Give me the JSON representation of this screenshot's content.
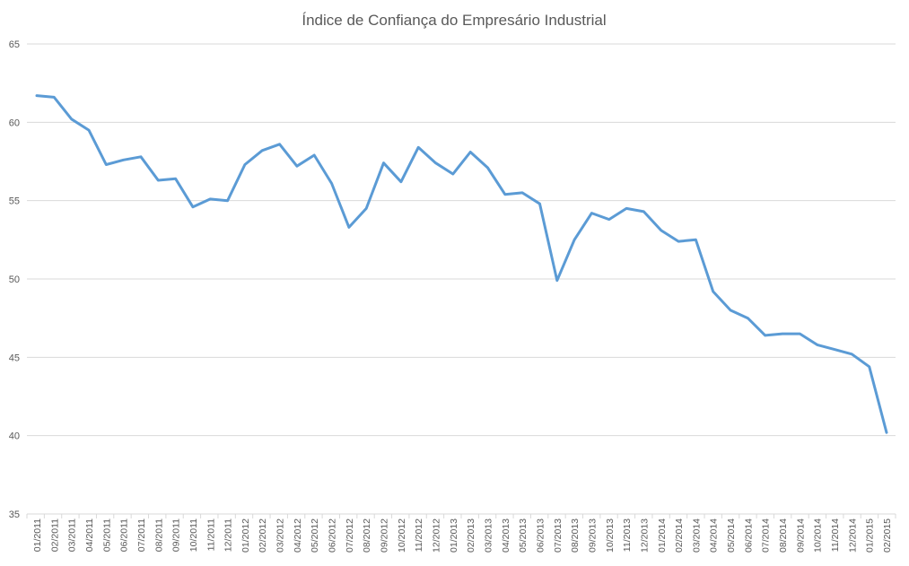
{
  "chart_data": {
    "type": "line",
    "title": "Índice de Confiança do Empresário Industrial",
    "xlabel": "",
    "ylabel": "",
    "ylim": [
      35,
      65
    ],
    "yticks": [
      35,
      40,
      45,
      50,
      55,
      60,
      65
    ],
    "grid": true,
    "legend": "none",
    "line_color": "#5b9bd5",
    "categories": [
      "01/2011",
      "02/2011",
      "03/2011",
      "04/2011",
      "05/2011",
      "06/2011",
      "07/2011",
      "08/2011",
      "09/2011",
      "10/2011",
      "11/2011",
      "12/2011",
      "01/2012",
      "02/2012",
      "03/2012",
      "04/2012",
      "05/2012",
      "06/2012",
      "07/2012",
      "08/2012",
      "09/2012",
      "10/2012",
      "11/2012",
      "12/2012",
      "01/2013",
      "02/2013",
      "03/2013",
      "04/2013",
      "05/2013",
      "06/2013",
      "07/2013",
      "08/2013",
      "09/2013",
      "10/2013",
      "11/2013",
      "12/2013",
      "01/2014",
      "02/2014",
      "03/2014",
      "04/2014",
      "05/2014",
      "06/2014",
      "07/2014",
      "08/2014",
      "09/2014",
      "10/2014",
      "11/2014",
      "12/2014",
      "01/2015",
      "02/2015"
    ],
    "values": [
      61.7,
      61.6,
      60.2,
      59.5,
      57.3,
      57.6,
      57.8,
      56.3,
      56.4,
      54.6,
      55.1,
      55.0,
      57.3,
      58.2,
      58.6,
      57.2,
      57.9,
      56.1,
      53.3,
      54.5,
      57.4,
      56.2,
      58.4,
      57.4,
      56.7,
      58.1,
      57.1,
      55.4,
      55.5,
      54.8,
      49.9,
      52.5,
      54.2,
      53.8,
      54.5,
      54.3,
      53.1,
      52.4,
      52.5,
      49.2,
      48.0,
      47.5,
      46.4,
      46.5,
      46.5,
      45.8,
      45.5,
      45.2,
      44.4,
      40.2
    ]
  }
}
